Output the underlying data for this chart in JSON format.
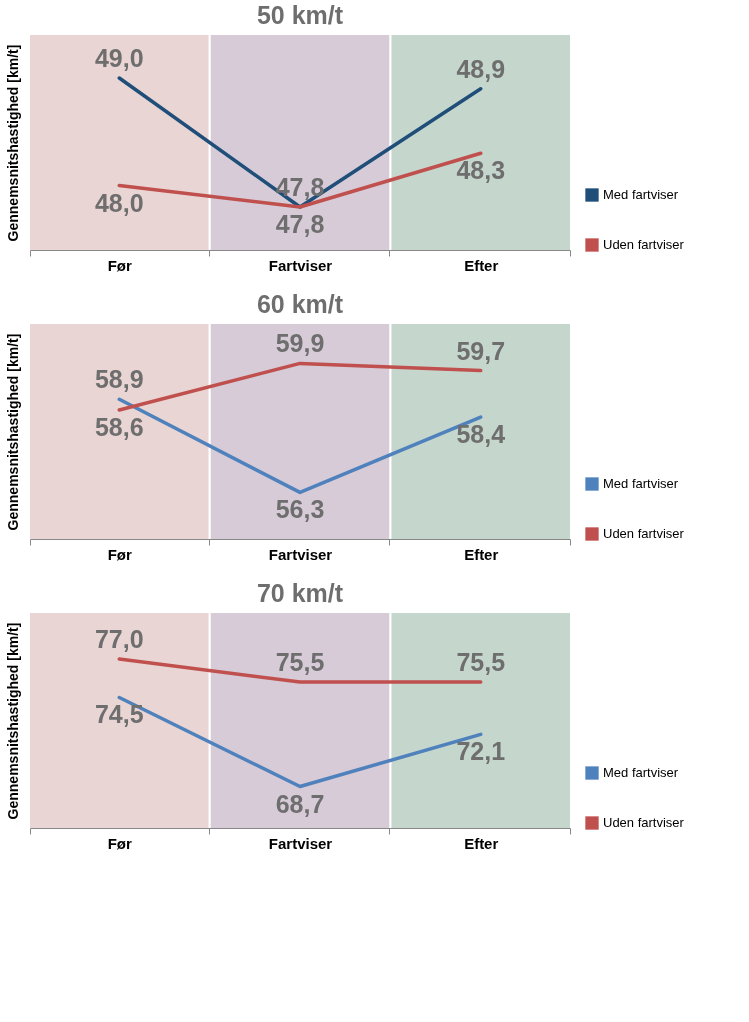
{
  "chart_data": [
    {
      "type": "line",
      "title": "50 km/t",
      "ylabel": "Gennemsnitshastighed [km/t]",
      "categories": [
        "Før",
        "Fartviser",
        "Efter"
      ],
      "tick_labels": "x",
      "legend": "bottom right",
      "bands": [
        {
          "axis": "x",
          "from": "Før",
          "to": "Før",
          "color": "#e9d5d3"
        },
        {
          "axis": "x",
          "from": "Fartviser",
          "to": "Fartviser",
          "color": "#d6cbd7"
        },
        {
          "axis": "x",
          "from": "Efter",
          "to": "Efter",
          "color": "#c5d6cc"
        }
      ],
      "series": [
        {
          "name": "Med fartviser",
          "color": "#1f4e79",
          "values": [
            49.0,
            47.8,
            48.9
          ],
          "value_labels": [
            "49,0",
            "47,8",
            "48,9"
          ]
        },
        {
          "name": "Uden fartviser",
          "color": "#c0504d",
          "values": [
            48.0,
            47.8,
            48.3
          ],
          "value_labels": [
            "48,0",
            "47,8",
            "48,3"
          ]
        }
      ]
    },
    {
      "type": "line",
      "title": "60 km/t",
      "ylabel": "Gennemsnitshastighed [km/t]",
      "categories": [
        "Før",
        "Fartviser",
        "Efter"
      ],
      "tick_labels": "x",
      "legend": "bottom right",
      "bands": [
        {
          "axis": "x",
          "from": "Før",
          "to": "Før",
          "color": "#e9d5d3"
        },
        {
          "axis": "x",
          "from": "Fartviser",
          "to": "Fartviser",
          "color": "#d6cbd7"
        },
        {
          "axis": "x",
          "from": "Efter",
          "to": "Efter",
          "color": "#c5d6cc"
        }
      ],
      "series": [
        {
          "name": "Med fartviser",
          "color": "#4f81bd",
          "values": [
            58.9,
            56.3,
            58.4
          ],
          "value_labels": [
            "58,9",
            "56,3",
            "58,4"
          ]
        },
        {
          "name": "Uden fartviser",
          "color": "#c0504d",
          "values": [
            58.6,
            59.9,
            59.7
          ],
          "value_labels": [
            "58,6",
            "59,9",
            "59,7"
          ]
        }
      ]
    },
    {
      "type": "line",
      "title": "70 km/t",
      "ylabel": "Gennemsnitshastighed [km/t]",
      "categories": [
        "Før",
        "Fartviser",
        "Efter"
      ],
      "tick_labels": "x",
      "legend": "bottom right",
      "bands": [
        {
          "axis": "x",
          "from": "Før",
          "to": "Før",
          "color": "#e9d5d3"
        },
        {
          "axis": "x",
          "from": "Fartviser",
          "to": "Fartviser",
          "color": "#d6cbd7"
        },
        {
          "axis": "x",
          "from": "Efter",
          "to": "Efter",
          "color": "#c5d6cc"
        }
      ],
      "series": [
        {
          "name": "Med fartviser",
          "color": "#4f81bd",
          "values": [
            74.5,
            68.7,
            72.1
          ],
          "value_labels": [
            "74,5",
            "68,7",
            "72,1"
          ]
        },
        {
          "name": "Uden fartviser",
          "color": "#c0504d",
          "values": [
            77.0,
            75.5,
            75.5
          ],
          "value_labels": [
            "77,0",
            "75,5",
            "75,5"
          ]
        }
      ]
    }
  ]
}
